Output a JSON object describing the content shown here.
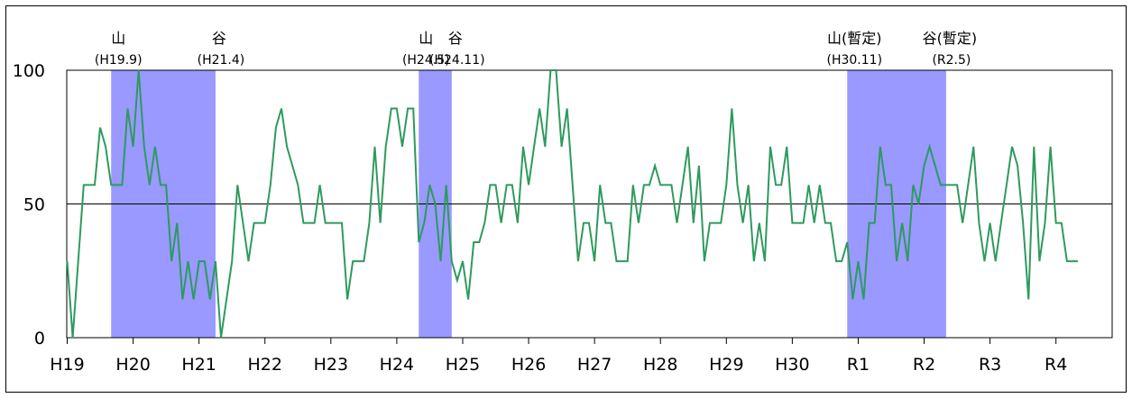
{
  "chart_data": {
    "type": "line",
    "title": "",
    "xlabel": "",
    "ylabel": "",
    "ylim": [
      0,
      100
    ],
    "y_ticks": [
      0,
      50,
      100
    ],
    "reference_line": 50,
    "grid": false,
    "x_period_labels": [
      "H19",
      "H20",
      "H21",
      "H22",
      "H23",
      "H24",
      "H25",
      "H26",
      "H27",
      "H28",
      "H29",
      "H30",
      "R1",
      "R2",
      "R3",
      "R4"
    ],
    "series_color": "#2e9a5e",
    "shade_color": "#9999ff",
    "recessions": [
      {
        "peak_label": "山",
        "peak_date": "(H19.9)",
        "trough_label": "谷",
        "trough_date": "(H21.4)",
        "start_index": 8,
        "end_index": 27
      },
      {
        "peak_label": "山",
        "peak_date": "(H24.5)",
        "trough_label": "谷",
        "trough_date": "(H24.11)",
        "start_index": 64,
        "end_index": 70
      },
      {
        "peak_label": "山(暫定)",
        "peak_date": "(H30.11)",
        "trough_label": "谷(暫定)",
        "trough_date": "(R2.5)",
        "start_index": 142,
        "end_index": 160
      }
    ],
    "series": [
      {
        "start": "H19.1",
        "frequency": "monthly",
        "values": [
          28.6,
          0,
          28.6,
          57.1,
          57.1,
          57.1,
          78.6,
          71.4,
          57.1,
          57.1,
          57.1,
          85.7,
          71.4,
          100,
          71.4,
          57.1,
          71.4,
          57.1,
          57.1,
          28.6,
          42.9,
          14.3,
          28.6,
          14.3,
          28.6,
          28.6,
          14.3,
          28.6,
          0,
          14.3,
          28.6,
          57.1,
          42.9,
          28.6,
          42.9,
          42.9,
          42.9,
          57.1,
          78.6,
          85.7,
          71.4,
          64.3,
          57.1,
          42.9,
          42.9,
          42.9,
          57.1,
          42.9,
          42.9,
          42.9,
          42.9,
          14.3,
          28.6,
          28.6,
          28.6,
          42.9,
          71.4,
          42.9,
          71.4,
          85.7,
          85.7,
          71.4,
          85.7,
          85.7,
          35.7,
          42.9,
          57.1,
          50,
          28.6,
          57.1,
          28.6,
          21.4,
          28.6,
          14.3,
          35.7,
          35.7,
          42.9,
          57.1,
          57.1,
          42.9,
          57.1,
          57.1,
          42.9,
          71.4,
          57.1,
          71.4,
          85.7,
          71.4,
          100,
          100,
          71.4,
          85.7,
          57.1,
          28.6,
          42.9,
          42.9,
          28.6,
          57.1,
          42.9,
          42.9,
          28.6,
          28.6,
          28.6,
          57.1,
          42.9,
          57.1,
          57.1,
          64.3,
          57.1,
          57.1,
          57.1,
          42.9,
          57.1,
          71.4,
          42.9,
          64.3,
          28.6,
          42.9,
          42.9,
          42.9,
          57.1,
          85.7,
          57.1,
          42.9,
          57.1,
          28.6,
          42.9,
          28.6,
          71.4,
          57.1,
          57.1,
          71.4,
          42.9,
          42.9,
          42.9,
          57.1,
          42.9,
          57.1,
          42.9,
          42.9,
          28.6,
          28.6,
          35.7,
          14.3,
          28.6,
          14.3,
          42.9,
          42.9,
          71.4,
          57.1,
          57.1,
          28.6,
          42.9,
          28.6,
          57.1,
          50,
          64.3,
          71.4,
          64.3,
          57.1,
          57.1,
          57.1,
          57.1,
          42.9,
          57.1,
          71.4,
          42.9,
          28.6,
          42.9,
          28.6,
          42.9,
          57.1,
          71.4,
          64.3,
          42.9,
          14.3,
          71.4,
          28.6,
          42.9,
          71.4,
          42.9,
          42.9,
          28.6,
          28.6,
          28.6
        ]
      }
    ]
  }
}
